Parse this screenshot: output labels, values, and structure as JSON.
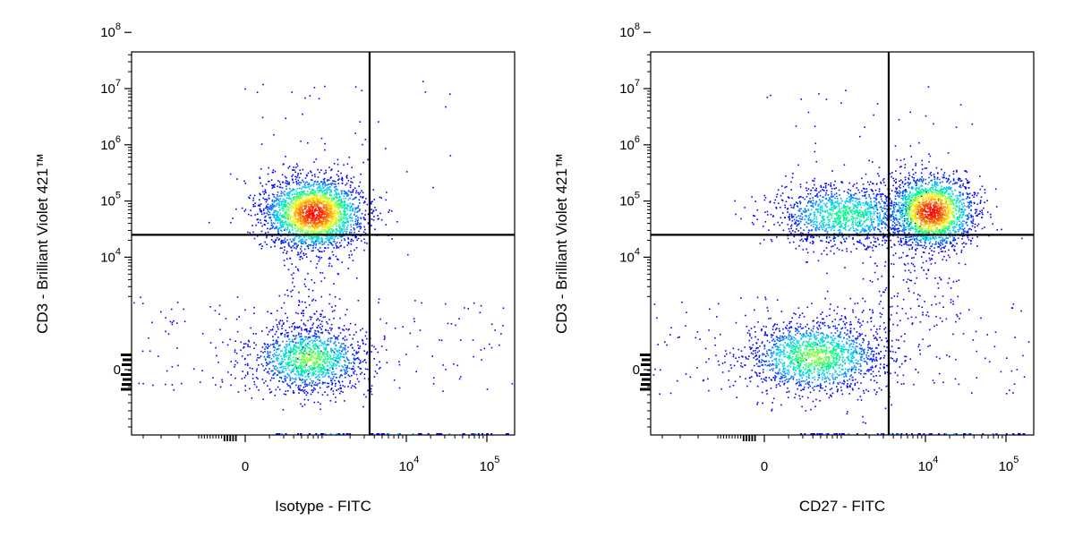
{
  "chart_data": [
    {
      "type": "scatter",
      "subtype": "flow-cytometry-density-dot-plot",
      "xlabel": "Isotype - FITC",
      "ylabel": "CD3 - Brilliant Violet 421™",
      "x_scale": "biexponential",
      "y_scale": "biexponential",
      "x_ticks": [
        {
          "value": 0,
          "base": "0",
          "exp": ""
        },
        {
          "value": 10000,
          "base": "10",
          "exp": "4"
        },
        {
          "value": 100000,
          "base": "10",
          "exp": "5"
        }
      ],
      "y_ticks": [
        {
          "value": 0,
          "base": "0",
          "exp": ""
        },
        {
          "value": 10000,
          "base": "10",
          "exp": "4"
        },
        {
          "value": 100000,
          "base": "10",
          "exp": "5"
        },
        {
          "value": 1000000,
          "base": "10",
          "exp": "6"
        },
        {
          "value": 10000000,
          "base": "10",
          "exp": "7"
        },
        {
          "value": 100000000,
          "base": "10",
          "exp": "8"
        }
      ],
      "quadrant_gate": {
        "x": 3500,
        "y": 25000
      },
      "populations": [
        {
          "name": "",
          "x_center": 1000,
          "y_center": 170000,
          "density": "high"
        },
        {
          "name": "",
          "x_center": 800,
          "y_center": 0,
          "density": "medium"
        }
      ],
      "color_scale": [
        "#0000ff",
        "#00c8ff",
        "#00ff80",
        "#ffff00",
        "#ff8000",
        "#ff0000"
      ]
    },
    {
      "type": "scatter",
      "subtype": "flow-cytometry-density-dot-plot",
      "xlabel": "CD27 - FITC",
      "ylabel": "CD3 - Brilliant Violet 421™",
      "x_scale": "biexponential",
      "y_scale": "biexponential",
      "x_ticks": [
        {
          "value": 0,
          "base": "0",
          "exp": ""
        },
        {
          "value": 10000,
          "base": "10",
          "exp": "4"
        },
        {
          "value": 100000,
          "base": "10",
          "exp": "5"
        }
      ],
      "y_ticks": [
        {
          "value": 0,
          "base": "0",
          "exp": ""
        },
        {
          "value": 10000,
          "base": "10",
          "exp": "4"
        },
        {
          "value": 100000,
          "base": "10",
          "exp": "5"
        },
        {
          "value": 1000000,
          "base": "10",
          "exp": "6"
        },
        {
          "value": 10000000,
          "base": "10",
          "exp": "7"
        },
        {
          "value": 100000000,
          "base": "10",
          "exp": "8"
        }
      ],
      "quadrant_gate": {
        "x": 3500,
        "y": 25000
      },
      "populations": [
        {
          "name": "",
          "x_center": 15000,
          "y_center": 180000,
          "density": "high"
        },
        {
          "name": "",
          "x_center": 700,
          "y_center": 170000,
          "density": "medium"
        },
        {
          "name": "",
          "x_center": 500,
          "y_center": 0,
          "density": "medium"
        }
      ],
      "color_scale": [
        "#0000ff",
        "#00c8ff",
        "#00ff80",
        "#ffff00",
        "#ff8000",
        "#ff0000"
      ]
    }
  ]
}
